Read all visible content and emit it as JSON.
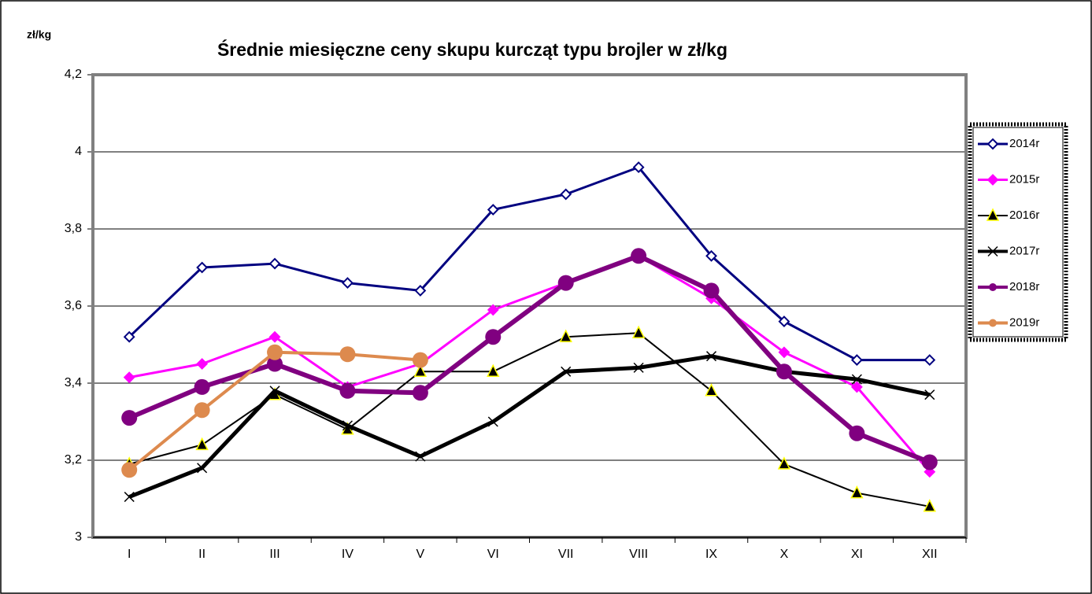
{
  "chart_data": {
    "type": "line",
    "title": "Średnie miesięczne ceny skupu kurcząt typu brojler w zł/kg",
    "y_label": "zł/kg",
    "categories": [
      "I",
      "II",
      "III",
      "IV",
      "V",
      "VI",
      "VII",
      "VIII",
      "IX",
      "X",
      "XI",
      "XII"
    ],
    "series": [
      {
        "name": "2014r",
        "color": "#000080",
        "marker": "diamond-open",
        "values": [
          3.52,
          3.7,
          3.71,
          3.66,
          3.64,
          3.85,
          3.89,
          3.96,
          3.73,
          3.56,
          3.46,
          3.46
        ]
      },
      {
        "name": "2015r",
        "color": "#ff00ff",
        "marker": "diamond",
        "values": [
          3.415,
          3.45,
          3.52,
          3.39,
          3.45,
          3.59,
          3.66,
          3.73,
          3.62,
          3.48,
          3.39,
          3.17
        ]
      },
      {
        "name": "2016r",
        "color": "#000000",
        "marker": "triangle",
        "values": [
          3.19,
          3.24,
          3.37,
          3.28,
          3.43,
          3.43,
          3.52,
          3.53,
          3.38,
          3.19,
          3.115,
          3.08
        ]
      },
      {
        "name": "2017r",
        "color": "#000000",
        "marker": "x",
        "values": [
          3.105,
          3.18,
          3.38,
          3.29,
          3.21,
          3.3,
          3.43,
          3.44,
          3.47,
          3.43,
          3.41,
          3.37
        ]
      },
      {
        "name": "2018r",
        "color": "#800080",
        "marker": "circle",
        "values": [
          3.31,
          3.39,
          3.45,
          3.38,
          3.375,
          3.52,
          3.66,
          3.73,
          3.64,
          3.43,
          3.27,
          3.195
        ]
      },
      {
        "name": "2019r",
        "color": "#dd8a4e",
        "marker": "circle",
        "values": [
          3.175,
          3.33,
          3.48,
          3.475,
          3.46,
          null,
          null,
          null,
          null,
          null,
          null,
          null
        ]
      }
    ],
    "ylim": [
      3,
      4.2
    ],
    "yticks": [
      3,
      {
        "value": 3.2,
        "label": "3,2"
      },
      {
        "value": 3.4,
        "label": "3,4"
      },
      {
        "value": 3.6,
        "label": "3,6"
      },
      {
        "value": 3.8,
        "label": "3,8"
      },
      4,
      {
        "value": 4.2,
        "label": "4,2"
      }
    ],
    "grid": true,
    "legend": "right"
  }
}
